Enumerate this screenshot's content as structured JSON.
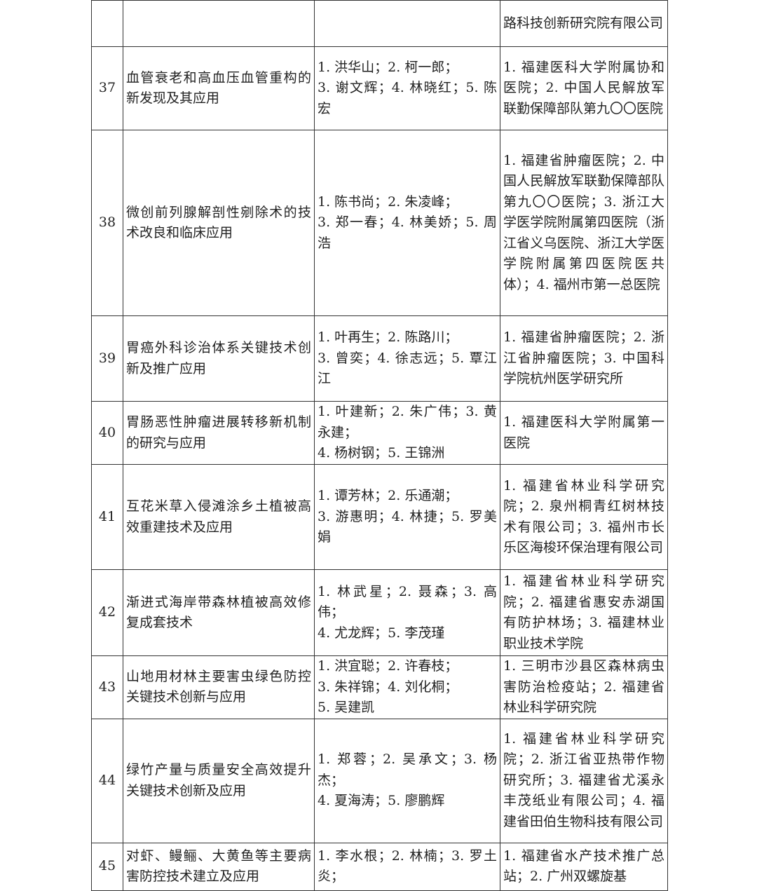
{
  "table": {
    "rows": [
      [
        null,
        null,
        null,
        "路科技创新研究院有限公司"
      ],
      [
        37,
        "血管衰老和高血压血管重构的新发现及其应用",
        [
          "1. 洪华山；2. 柯一郎；",
          "3. 谢文辉；4. 林晓红；5. 陈宏"
        ],
        "1. 福建医科大学附属协和医院；2. 中国人民解放军联勤保障部队第九〇〇医院"
      ],
      [
        38,
        "微创前列腺解剖性剜除术的技术改良和临床应用",
        [
          "1. 陈书尚；2. 朱凌峰；",
          "3. 郑一春；4. 林美娇；5. 周浩"
        ],
        "1. 福建省肿瘤医院；2. 中国人民解放军联勤保障部队第九〇〇医院；3. 浙江大学医学院附属第四医院（浙江省义乌医院、浙江大学医学院附属第四医院医共体）；4. 福州市第一总医院"
      ],
      [
        39,
        "胃癌外科诊治体系关键技术创新及推广应用",
        [
          "1. 叶再生；2. 陈路川；",
          "3. 曾奕；4. 徐志远；5. 覃江江"
        ],
        "1. 福建省肿瘤医院；2. 浙江省肿瘤医院；3. 中国科学院杭州医学研究所"
      ],
      [
        40,
        "胃肠恶性肿瘤进展转移新机制的研究与应用",
        [
          "1. 叶建新；2. 朱广伟；3. 黄永建；",
          "4. 杨树钢；5. 王锦洲"
        ],
        "1. 福建医科大学附属第一医院"
      ],
      [
        41,
        "互花米草入侵滩涂乡土植被高效重建技术及应用",
        [
          "1. 谭芳林；2. 乐通潮；",
          "3. 游惠明；4. 林捷；5. 罗美娟"
        ],
        "1. 福建省林业科学研究院；2. 泉州桐青红树林技术有限公司；3. 福州市长乐区海梭环保治理有限公司"
      ],
      [
        42,
        "渐进式海岸带森林植被高效修复成套技术",
        [
          "1. 林武星；2. 聂森；3. 高伟；",
          "4. 尤龙辉；5. 李茂瑾"
        ],
        "1. 福建省林业科学研究院；2. 福建省惠安赤湖国有防护林场；3. 福建林业职业技术学院"
      ],
      [
        43,
        "山地用材林主要害虫绿色防控关键技术创新与应用",
        [
          "1. 洪宜聪；2. 许春枝；",
          "3. 朱祥锦；4. 刘化桐；",
          "5. 吴建凯"
        ],
        "1. 三明市沙县区森林病虫害防治检疫站；2. 福建省林业科学研究院"
      ],
      [
        44,
        "绿竹产量与质量安全高效提升关键技术创新及应用",
        [
          "1. 郑蓉；2. 吴承文；3. 杨杰；",
          "4. 夏海涛；5. 廖鹏辉"
        ],
        "1. 福建省林业科学研究院；2. 浙江省亚热带作物研究所；3. 福建省尤溪永丰茂纸业有限公司；4. 福建省田伯生物科技有限公司"
      ],
      [
        45,
        "对虾、鳗鲡、大黄鱼等主要病害防控技术建立及应用",
        [
          "1. 李水根；2. 林楠；3. 罗土炎；"
        ],
        "1. 福建省水产技术推广总站；2. 广州双螺旋基"
      ]
    ]
  }
}
